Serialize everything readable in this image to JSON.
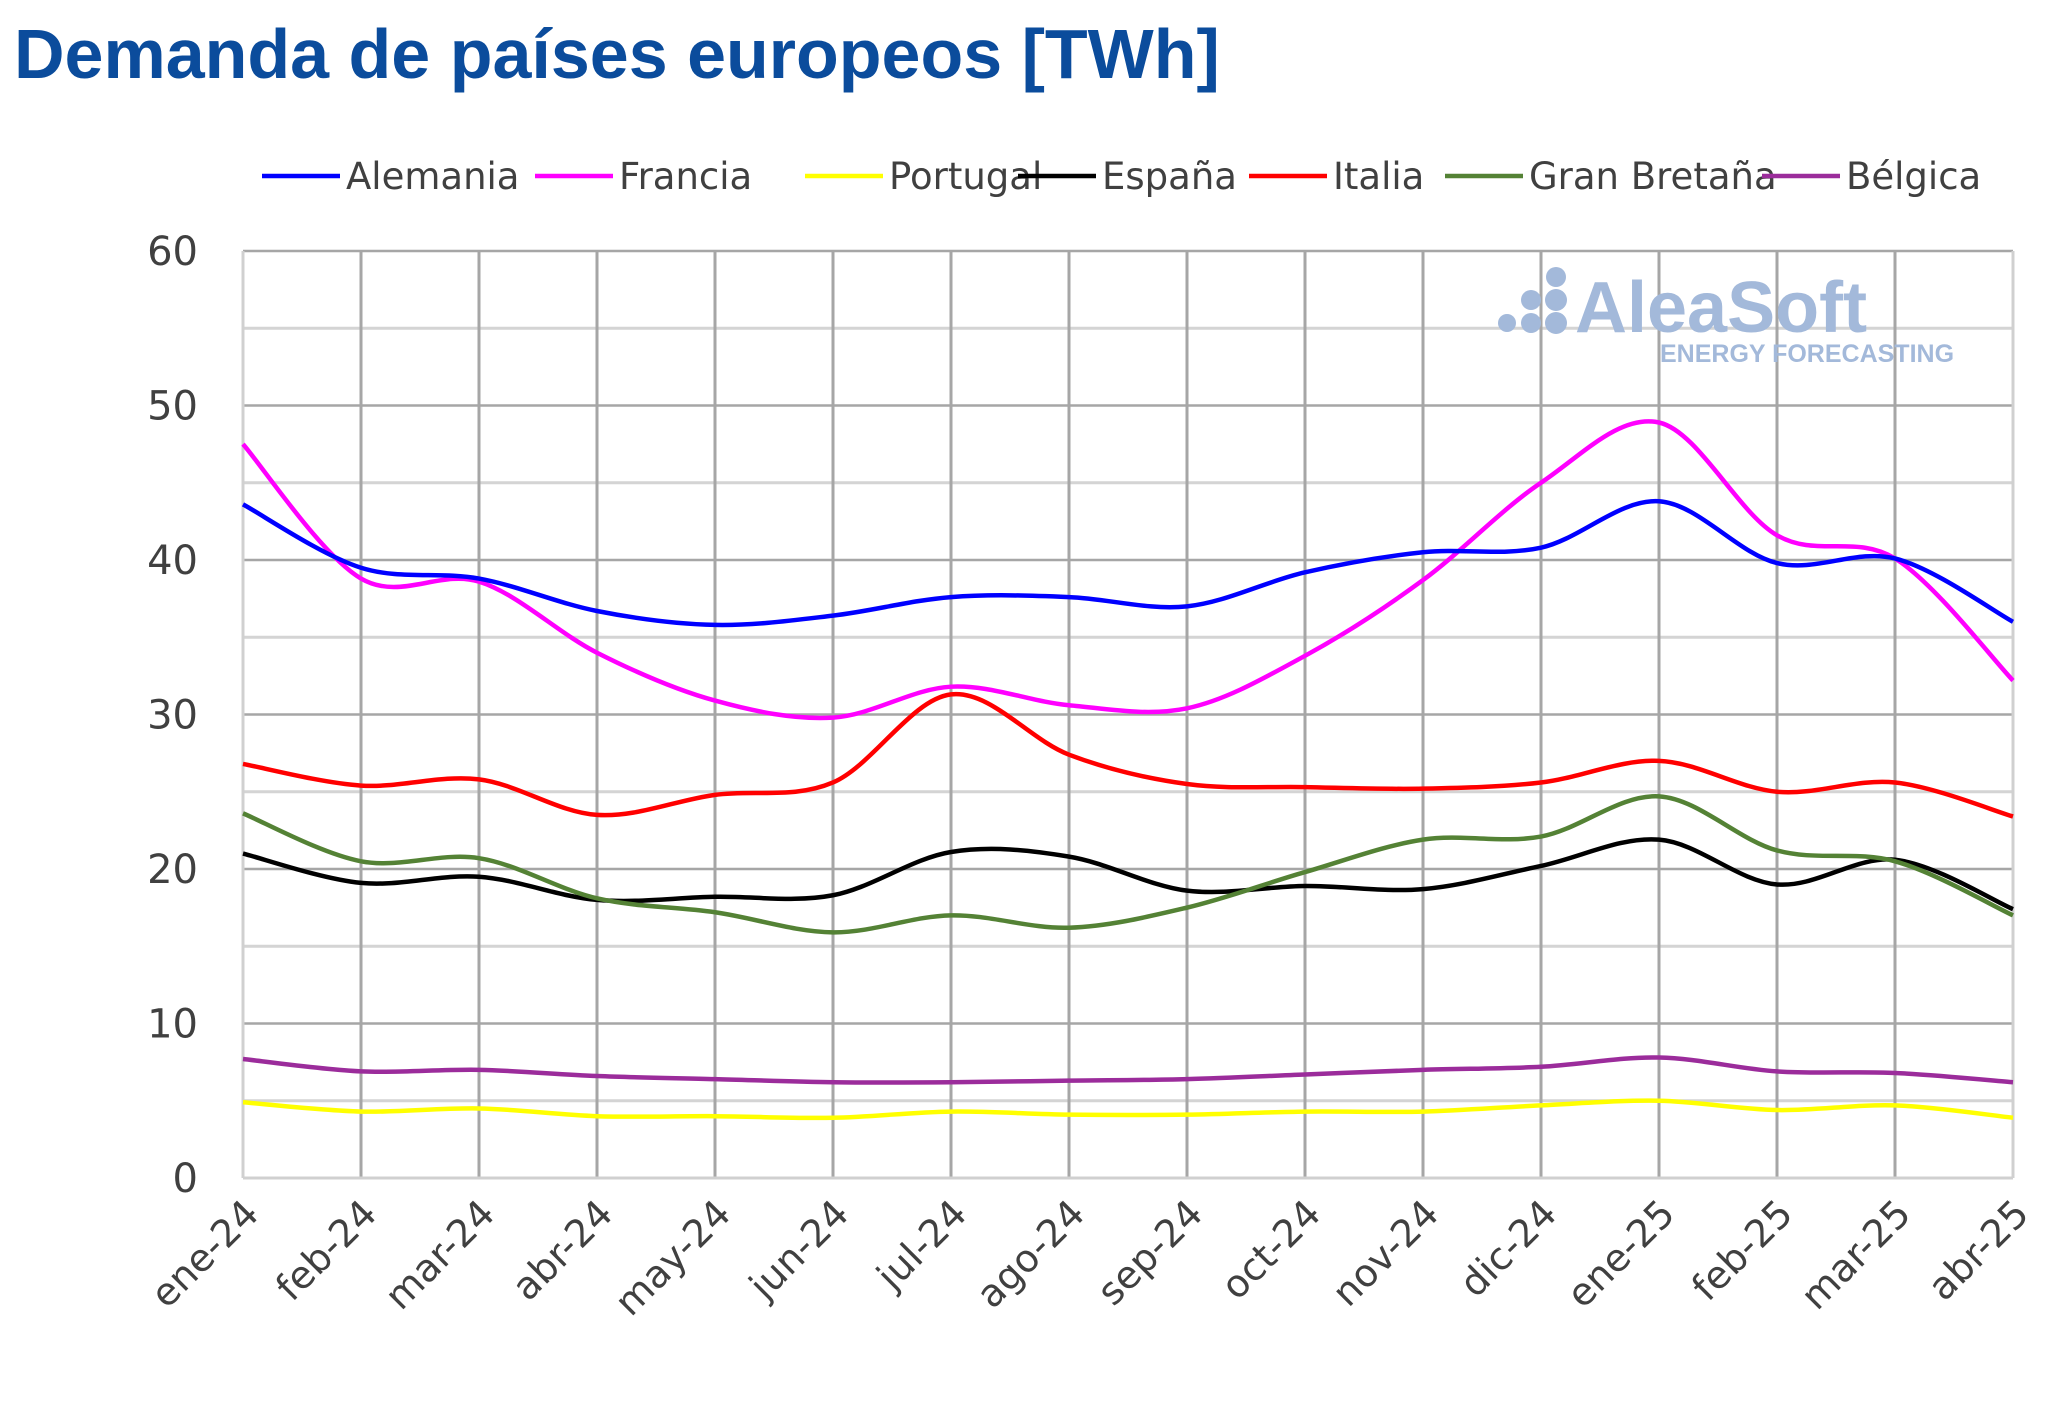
{
  "chart_data": {
    "type": "line",
    "title": "Demanda de países europeos [TWh]",
    "xlabel": "",
    "ylabel": "",
    "ylim": [
      0,
      60
    ],
    "yticks": [
      0,
      10,
      20,
      30,
      40,
      50,
      60
    ],
    "grid": true,
    "legend_position": "top",
    "categories": [
      "ene-24",
      "feb-24",
      "mar-24",
      "abr-24",
      "may-24",
      "jun-24",
      "jul-24",
      "ago-24",
      "sep-24",
      "oct-24",
      "nov-24",
      "dic-24",
      "ene-25",
      "feb-25",
      "mar-25",
      "abr-25"
    ],
    "series": [
      {
        "name": "Alemania",
        "color": "#0000ff",
        "values": [
          43.6,
          39.5,
          38.8,
          36.7,
          35.8,
          36.4,
          37.6,
          37.6,
          37.0,
          39.2,
          40.5,
          40.8,
          43.8,
          39.8,
          40.1,
          36.0
        ]
      },
      {
        "name": "Francia",
        "color": "#ff00ff",
        "values": [
          47.5,
          38.8,
          38.6,
          34.0,
          30.9,
          29.8,
          31.8,
          30.6,
          30.4,
          33.8,
          38.7,
          45.0,
          48.9,
          41.6,
          40.1,
          32.2
        ]
      },
      {
        "name": "Portugal",
        "color": "#ffff00",
        "values": [
          4.9,
          4.3,
          4.5,
          4.0,
          4.0,
          3.9,
          4.3,
          4.1,
          4.1,
          4.3,
          4.3,
          4.7,
          5.0,
          4.4,
          4.7,
          3.9
        ]
      },
      {
        "name": "España",
        "color": "#000000",
        "values": [
          21.0,
          19.1,
          19.5,
          18.0,
          18.2,
          18.3,
          21.1,
          20.8,
          18.6,
          18.9,
          18.7,
          20.2,
          21.9,
          19.0,
          20.6,
          17.4
        ]
      },
      {
        "name": "Italia",
        "color": "#ff0000",
        "values": [
          26.8,
          25.4,
          25.8,
          23.5,
          24.8,
          25.6,
          31.3,
          27.4,
          25.5,
          25.3,
          25.2,
          25.6,
          27.0,
          25.0,
          25.6,
          23.4
        ]
      },
      {
        "name": "Gran Bretaña",
        "color": "#548235",
        "values": [
          23.6,
          20.5,
          20.7,
          18.1,
          17.2,
          15.9,
          17.0,
          16.2,
          17.5,
          19.8,
          21.9,
          22.1,
          24.7,
          21.2,
          20.5,
          17.0
        ]
      },
      {
        "name": "Bélgica",
        "color": "#9b2c9b",
        "values": [
          7.7,
          6.9,
          7.0,
          6.6,
          6.4,
          6.2,
          6.2,
          6.3,
          6.4,
          6.7,
          7.0,
          7.2,
          7.8,
          6.9,
          6.8,
          6.2
        ]
      }
    ]
  },
  "watermark": {
    "brand": "AleaSoft",
    "tagline": "ENERGY FORECASTING",
    "color": "#a3b9da"
  }
}
